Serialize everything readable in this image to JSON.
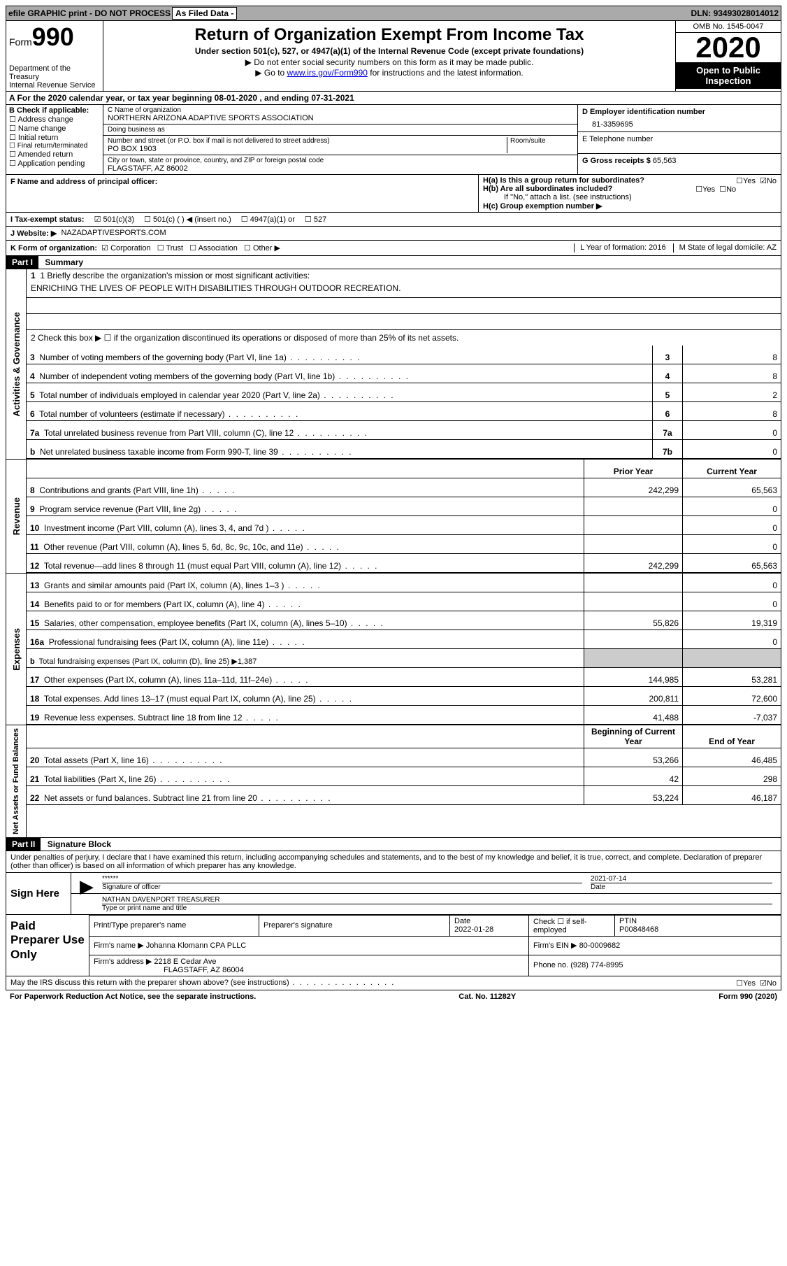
{
  "topbar": {
    "efile": "efile GRAPHIC print - DO NOT PROCESS",
    "asfiled": "As Filed Data -",
    "dln_label": "DLN:",
    "dln": "93493028014012"
  },
  "header": {
    "form_label": "Form",
    "form_number": "990",
    "dept": "Department of the Treasury",
    "irs": "Internal Revenue Service",
    "title": "Return of Organization Exempt From Income Tax",
    "sub1": "Under section 501(c), 527, or 4947(a)(1) of the Internal Revenue Code (except private foundations)",
    "sub2": "Do not enter social security numbers on this form as it may be made public.",
    "sub3_pre": "Go to ",
    "sub3_link": "www.irs.gov/Form990",
    "sub3_post": " for instructions and the latest information.",
    "omb": "OMB No. 1545-0047",
    "year": "2020",
    "open": "Open to Public Inspection"
  },
  "lineA": "A   For the 2020 calendar year, or tax year beginning 08-01-2020    , and ending 07-31-2021",
  "sectionB": {
    "b_label": "B Check if applicable:",
    "b_items": [
      "Address change",
      "Name change",
      "Initial return",
      "Final return/terminated",
      "Amended return",
      "Application pending"
    ],
    "c_label": "C Name of organization",
    "c_name": "NORTHERN ARIZONA ADAPTIVE SPORTS ASSOCIATION",
    "dba_label": "Doing business as",
    "dba": "",
    "addr_label": "Number and street (or P.O. box if mail is not delivered to street address)",
    "room_label": "Room/suite",
    "addr": "PO BOX 1903",
    "city_label": "City or town, state or province, country, and ZIP or foreign postal code",
    "city": "FLAGSTAFF, AZ  86002",
    "d_label": "D Employer identification number",
    "d_ein": "81-3359695",
    "e_label": "E Telephone number",
    "e_phone": "",
    "g_label": "G Gross receipts $",
    "g_amount": "65,563"
  },
  "sectionFH": {
    "f_label": "F   Name and address of principal officer:",
    "ha": "H(a)  Is this a group return for subordinates?",
    "ha_yes": "Yes",
    "ha_no": "No",
    "hb": "H(b)  Are all subordinates included?",
    "hb_note": "If \"No,\" attach a list. (see instructions)",
    "hc": "H(c)  Group exemption number ▶"
  },
  "sectionI": {
    "label": "I   Tax-exempt status:",
    "opt1": "501(c)(3)",
    "opt2": "501(c) (   ) ◀ (insert no.)",
    "opt3": "4947(a)(1) or",
    "opt4": "527"
  },
  "sectionJ": {
    "label": "J   Website: ▶",
    "value": "NAZADAPTIVESPORTS.COM"
  },
  "sectionK": {
    "label": "K Form of organization:",
    "opts": [
      "Corporation",
      "Trust",
      "Association",
      "Other ▶"
    ],
    "l": "L Year of formation: 2016",
    "m": "M State of legal domicile: AZ"
  },
  "part1": {
    "bar": "Part I",
    "title": "Summary"
  },
  "gov": {
    "side": "Activities & Governance",
    "l1": "1  Briefly describe the organization's mission or most significant activities:",
    "l1_text": "ENRICHING THE LIVES OF PEOPLE WITH DISABILITIES THROUGH OUTDOOR RECREATION.",
    "l2": "2   Check this box ▶ ☐  if the organization discontinued its operations or disposed of more than 25% of its net assets.",
    "rows": [
      {
        "n": "3",
        "t": "Number of voting members of the governing body (Part VI, line 1a)",
        "box": "3",
        "v": "8"
      },
      {
        "n": "4",
        "t": "Number of independent voting members of the governing body (Part VI, line 1b)",
        "box": "4",
        "v": "8"
      },
      {
        "n": "5",
        "t": "Total number of individuals employed in calendar year 2020 (Part V, line 2a)",
        "box": "5",
        "v": "2"
      },
      {
        "n": "6",
        "t": "Total number of volunteers (estimate if necessary)",
        "box": "6",
        "v": "8"
      },
      {
        "n": "7a",
        "t": "Total unrelated business revenue from Part VIII, column (C), line 12",
        "box": "7a",
        "v": "0"
      },
      {
        "n": "b",
        "t": "Net unrelated business taxable income from Form 990-T, line 39",
        "box": "7b",
        "v": "0"
      }
    ]
  },
  "rev": {
    "side": "Revenue",
    "hdr_prior": "Prior Year",
    "hdr_curr": "Current Year",
    "rows": [
      {
        "n": "8",
        "t": "Contributions and grants (Part VIII, line 1h)",
        "p": "242,299",
        "c": "65,563"
      },
      {
        "n": "9",
        "t": "Program service revenue (Part VIII, line 2g)",
        "p": "",
        "c": "0"
      },
      {
        "n": "10",
        "t": "Investment income (Part VIII, column (A), lines 3, 4, and 7d )",
        "p": "",
        "c": "0"
      },
      {
        "n": "11",
        "t": "Other revenue (Part VIII, column (A), lines 5, 6d, 8c, 9c, 10c, and 11e)",
        "p": "",
        "c": "0"
      },
      {
        "n": "12",
        "t": "Total revenue—add lines 8 through 11 (must equal Part VIII, column (A), line 12)",
        "p": "242,299",
        "c": "65,563"
      }
    ]
  },
  "exp": {
    "side": "Expenses",
    "rows": [
      {
        "n": "13",
        "t": "Grants and similar amounts paid (Part IX, column (A), lines 1–3 )",
        "p": "",
        "c": "0"
      },
      {
        "n": "14",
        "t": "Benefits paid to or for members (Part IX, column (A), line 4)",
        "p": "",
        "c": "0"
      },
      {
        "n": "15",
        "t": "Salaries, other compensation, employee benefits (Part IX, column (A), lines 5–10)",
        "p": "55,826",
        "c": "19,319"
      },
      {
        "n": "16a",
        "t": "Professional fundraising fees (Part IX, column (A), line 11e)",
        "p": "",
        "c": "0"
      },
      {
        "n": "b",
        "t": "Total fundraising expenses (Part IX, column (D), line 25) ▶1,387",
        "p": "—",
        "c": "—"
      },
      {
        "n": "17",
        "t": "Other expenses (Part IX, column (A), lines 11a–11d, 11f–24e)",
        "p": "144,985",
        "c": "53,281"
      },
      {
        "n": "18",
        "t": "Total expenses. Add lines 13–17 (must equal Part IX, column (A), line 25)",
        "p": "200,811",
        "c": "72,600"
      },
      {
        "n": "19",
        "t": "Revenue less expenses. Subtract line 18 from line 12",
        "p": "41,488",
        "c": "-7,037"
      }
    ]
  },
  "net": {
    "side": "Net Assets or Fund Balances",
    "hdr_beg": "Beginning of Current Year",
    "hdr_end": "End of Year",
    "rows": [
      {
        "n": "20",
        "t": "Total assets (Part X, line 16)",
        "p": "53,266",
        "c": "46,485"
      },
      {
        "n": "21",
        "t": "Total liabilities (Part X, line 26)",
        "p": "42",
        "c": "298"
      },
      {
        "n": "22",
        "t": "Net assets or fund balances. Subtract line 21 from line 20",
        "p": "53,224",
        "c": "46,187"
      }
    ]
  },
  "part2": {
    "bar": "Part II",
    "title": "Signature Block",
    "perjury": "Under penalties of perjury, I declare that I have examined this return, including accompanying schedules and statements, and to the best of my knowledge and belief, it is true, correct, and complete. Declaration of preparer (other than officer) is based on all information of which preparer has any knowledge."
  },
  "sign": {
    "label": "Sign Here",
    "stars": "******",
    "sig_of_officer": "Signature of officer",
    "date_label": "Date",
    "date": "2021-07-14",
    "name": "NATHAN DAVENPORT TREASURER",
    "name_label": "Type or print name and title"
  },
  "prep": {
    "label": "Paid Preparer Use Only",
    "h1": "Print/Type preparer's name",
    "h2": "Preparer's signature",
    "h3": "Date",
    "date": "2022-01-28",
    "h4": "Check ☐ if self-employed",
    "h5": "PTIN",
    "ptin": "P00848468",
    "firm_name_label": "Firm's name    ▶",
    "firm_name": "Johanna Klomann CPA PLLC",
    "firm_ein_label": "Firm's EIN ▶",
    "firm_ein": "80-0009682",
    "firm_addr_label": "Firm's address ▶",
    "firm_addr1": "2218 E Cedar Ave",
    "firm_addr2": "FLAGSTAFF, AZ  86004",
    "phone_label": "Phone no.",
    "phone": "(928) 774-8995"
  },
  "footer": {
    "q": "May the IRS discuss this return with the preparer shown above? (see instructions)",
    "yes": "Yes",
    "no": "No",
    "pra": "For Paperwork Reduction Act Notice, see the separate instructions.",
    "cat": "Cat. No. 11282Y",
    "form": "Form 990 (2020)"
  }
}
